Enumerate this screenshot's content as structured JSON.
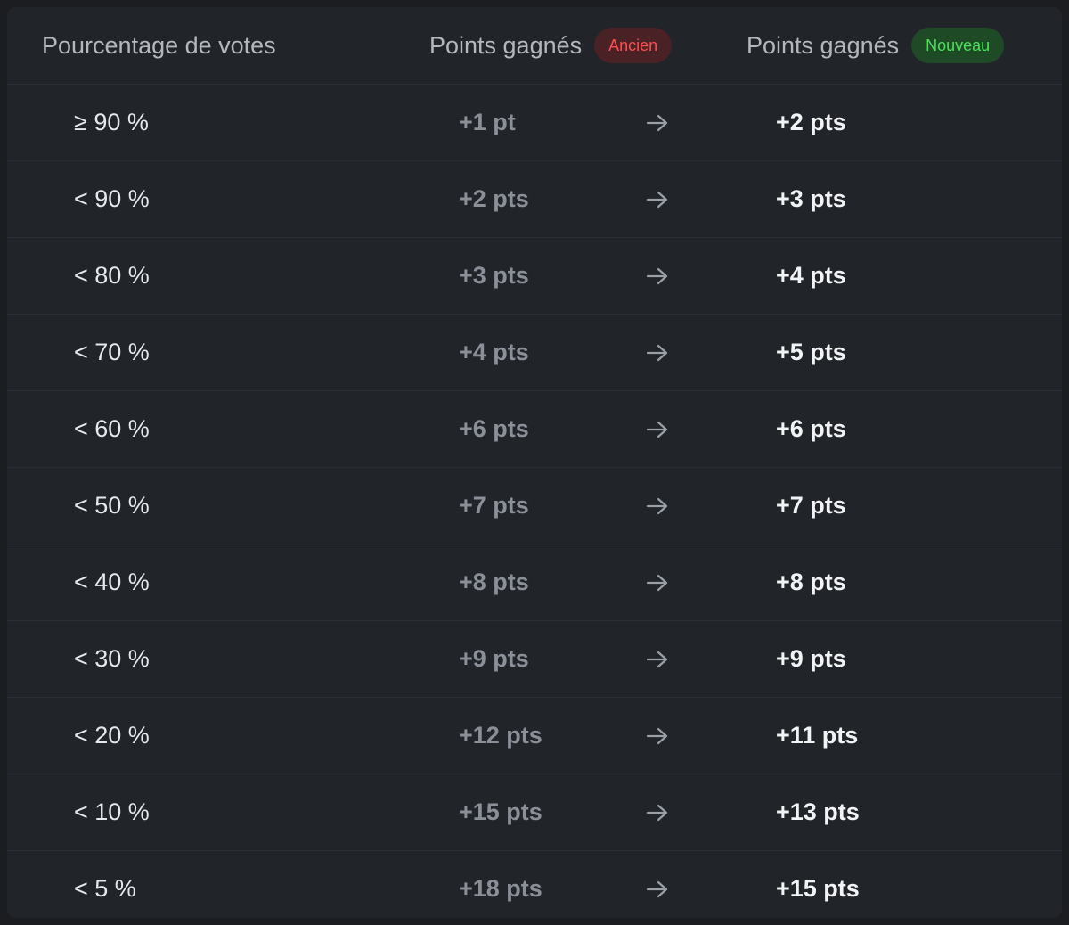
{
  "header": {
    "col_percentage": "Pourcentage de votes",
    "col_old": "Points gagnés",
    "col_old_badge": "Ancien",
    "col_new": "Points gagnés",
    "col_new_badge": "Nouveau"
  },
  "colors": {
    "badge_old_text": "#ff4d4f",
    "badge_old_bg": "#4a2125",
    "badge_new_text": "#4be25a",
    "badge_new_bg": "#1f4a26"
  },
  "arrow_icon": "arrow-right-icon",
  "rows": [
    {
      "percentage": "≥ 90 %",
      "old": "+1 pt",
      "new": "+2 pts"
    },
    {
      "percentage": "< 90 %",
      "old": "+2 pts",
      "new": "+3 pts"
    },
    {
      "percentage": "< 80 %",
      "old": "+3 pts",
      "new": "+4 pts"
    },
    {
      "percentage": "< 70 %",
      "old": "+4 pts",
      "new": "+5 pts"
    },
    {
      "percentage": "< 60 %",
      "old": "+6 pts",
      "new": "+6 pts"
    },
    {
      "percentage": "< 50 %",
      "old": "+7 pts",
      "new": "+7 pts"
    },
    {
      "percentage": "< 40 %",
      "old": "+8 pts",
      "new": "+8 pts"
    },
    {
      "percentage": "< 30 %",
      "old": "+9 pts",
      "new": "+9 pts"
    },
    {
      "percentage": "< 20 %",
      "old": "+12 pts",
      "new": "+11 pts"
    },
    {
      "percentage": "< 10 %",
      "old": "+15 pts",
      "new": "+13 pts"
    },
    {
      "percentage": "< 5 %",
      "old": "+18 pts",
      "new": "+15 pts"
    }
  ]
}
